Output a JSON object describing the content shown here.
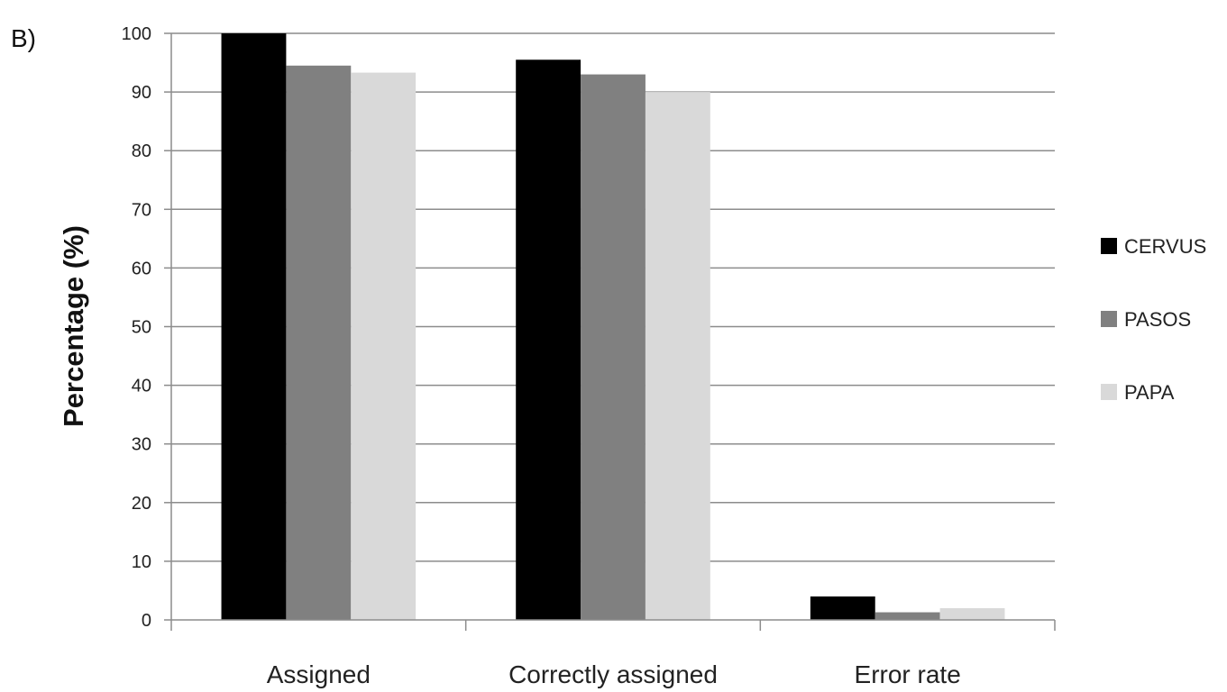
{
  "panel_label": "B)",
  "chart_data": {
    "type": "bar",
    "categories": [
      "Assigned",
      "Correctly assigned",
      "Error rate"
    ],
    "series": [
      {
        "name": "CERVUS",
        "color": "#000000",
        "values": [
          100,
          95.5,
          4
        ]
      },
      {
        "name": "PASOS",
        "color": "#808080",
        "values": [
          94.5,
          93,
          1.3
        ]
      },
      {
        "name": "PAPA",
        "color": "#d9d9d9",
        "values": [
          93.3,
          90,
          2
        ]
      }
    ],
    "ylabel": "Percentage (%)",
    "ylim": [
      0,
      100
    ],
    "yticks": [
      0,
      10,
      20,
      30,
      40,
      50,
      60,
      70,
      80,
      90,
      100
    ],
    "grid": true,
    "legend_position": "right"
  }
}
